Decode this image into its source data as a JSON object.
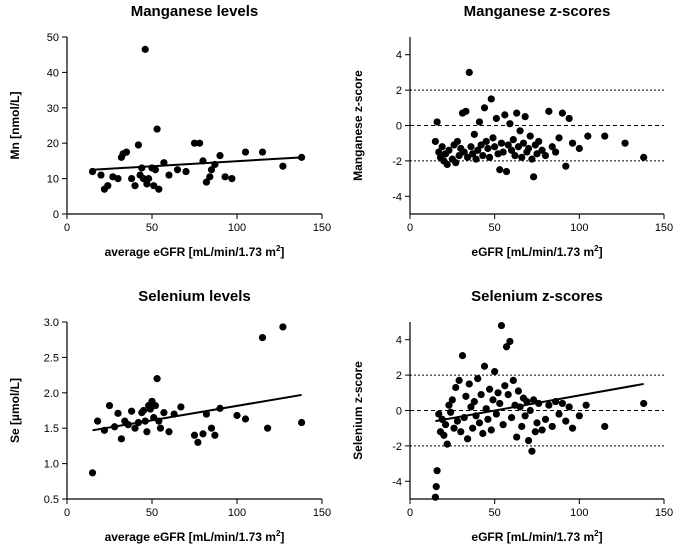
{
  "chart_data": [
    {
      "type": "scatter",
      "title": "Manganese levels",
      "xlabel": "average eGFR [mL/min/1.73 m",
      "xlabel_sup": "2",
      "xlabel_end": "]",
      "ylabel": "Mn [nmol/L]",
      "xlim": [
        0,
        150
      ],
      "ylim": [
        0,
        50
      ],
      "xticks": [
        0,
        50,
        100,
        150
      ],
      "yticks": [
        0,
        10,
        20,
        30,
        40,
        50
      ],
      "ref_lines": [],
      "trend": {
        "x": [
          15,
          138
        ],
        "y": [
          12.5,
          16.0
        ]
      },
      "points": [
        [
          15,
          12
        ],
        [
          20,
          11
        ],
        [
          22,
          7
        ],
        [
          24,
          8
        ],
        [
          27,
          10.5
        ],
        [
          30,
          10
        ],
        [
          32,
          16
        ],
        [
          33,
          17
        ],
        [
          35,
          17.5
        ],
        [
          38,
          10
        ],
        [
          40,
          8
        ],
        [
          42,
          19.5
        ],
        [
          43,
          11
        ],
        [
          44,
          13
        ],
        [
          45,
          10
        ],
        [
          46,
          46.5
        ],
        [
          47,
          8.5
        ],
        [
          48,
          10
        ],
        [
          50,
          13
        ],
        [
          51,
          8
        ],
        [
          52,
          12.5
        ],
        [
          53,
          24
        ],
        [
          54,
          7
        ],
        [
          57,
          14.5
        ],
        [
          60,
          11
        ],
        [
          65,
          12.5
        ],
        [
          70,
          12
        ],
        [
          75,
          20
        ],
        [
          78,
          20
        ],
        [
          80,
          15
        ],
        [
          82,
          9
        ],
        [
          84,
          10.5
        ],
        [
          85,
          12.5
        ],
        [
          87,
          14
        ],
        [
          90,
          16.5
        ],
        [
          93,
          10.5
        ],
        [
          97,
          10
        ],
        [
          105,
          17.5
        ],
        [
          115,
          17.5
        ],
        [
          127,
          13.5
        ],
        [
          138,
          16
        ]
      ]
    },
    {
      "type": "scatter",
      "title": "Manganese z-scores",
      "xlabel": "eGFR [mL/min/1.73 m",
      "xlabel_sup": "2",
      "xlabel_end": "]",
      "ylabel": "Manganese z-score",
      "xlim": [
        0,
        150
      ],
      "ylim": [
        -5,
        5
      ],
      "xticks": [
        0,
        50,
        100,
        150
      ],
      "yticks": [
        -4,
        -2,
        0,
        2,
        4
      ],
      "ref_lines": [
        2,
        0,
        -2
      ],
      "trend": null,
      "points": [
        [
          15,
          -0.9
        ],
        [
          16,
          0.2
        ],
        [
          17,
          -1.5
        ],
        [
          18,
          -1.8
        ],
        [
          19,
          -1.2
        ],
        [
          20,
          -2.0
        ],
        [
          21,
          -1.6
        ],
        [
          22,
          -2.2
        ],
        [
          23,
          -1.4
        ],
        [
          25,
          -1.9
        ],
        [
          26,
          -1.1
        ],
        [
          27,
          -2.1
        ],
        [
          28,
          -0.9
        ],
        [
          29,
          -1.7
        ],
        [
          30,
          -1.3
        ],
        [
          31,
          0.7
        ],
        [
          32,
          -1.5
        ],
        [
          33,
          0.8
        ],
        [
          34,
          -1.8
        ],
        [
          35,
          3.0
        ],
        [
          36,
          -1.2
        ],
        [
          37,
          -1.6
        ],
        [
          38,
          -0.5
        ],
        [
          39,
          -1.9
        ],
        [
          40,
          -1.4
        ],
        [
          41,
          0.2
        ],
        [
          42,
          -1.1
        ],
        [
          43,
          -1.7
        ],
        [
          44,
          1.0
        ],
        [
          45,
          -0.9
        ],
        [
          46,
          -1.3
        ],
        [
          47,
          -1.8
        ],
        [
          48,
          1.5
        ],
        [
          49,
          -0.7
        ],
        [
          50,
          -1.2
        ],
        [
          51,
          0.4
        ],
        [
          52,
          -1.6
        ],
        [
          53,
          -2.5
        ],
        [
          54,
          -1.0
        ],
        [
          55,
          -1.5
        ],
        [
          56,
          0.6
        ],
        [
          57,
          -2.6
        ],
        [
          58,
          -1.1
        ],
        [
          59,
          0.1
        ],
        [
          60,
          -1.4
        ],
        [
          61,
          -0.8
        ],
        [
          62,
          -1.7
        ],
        [
          63,
          0.7
        ],
        [
          64,
          -1.2
        ],
        [
          65,
          -0.3
        ],
        [
          66,
          -1.8
        ],
        [
          67,
          -1.0
        ],
        [
          68,
          0.5
        ],
        [
          69,
          -1.5
        ],
        [
          70,
          -1.3
        ],
        [
          71,
          -0.6
        ],
        [
          72,
          -1.9
        ],
        [
          73,
          -2.9
        ],
        [
          74,
          -1.1
        ],
        [
          75,
          -1.6
        ],
        [
          76,
          -0.9
        ],
        [
          78,
          -1.4
        ],
        [
          80,
          -1.7
        ],
        [
          82,
          0.8
        ],
        [
          84,
          -1.2
        ],
        [
          86,
          -1.5
        ],
        [
          88,
          -0.7
        ],
        [
          90,
          0.7
        ],
        [
          92,
          -2.3
        ],
        [
          94,
          0.4
        ],
        [
          96,
          -1.0
        ],
        [
          100,
          -1.3
        ],
        [
          105,
          -0.6
        ],
        [
          115,
          -0.6
        ],
        [
          127,
          -1.0
        ],
        [
          138,
          -1.8
        ]
      ]
    },
    {
      "type": "scatter",
      "title": "Selenium levels",
      "xlabel": "average eGFR [mL/min/1.73 m",
      "xlabel_sup": "2",
      "xlabel_end": "]",
      "ylabel": "Se [µmol/L]",
      "xlim": [
        0,
        150
      ],
      "ylim": [
        0.5,
        3.0
      ],
      "xticks": [
        0,
        50,
        100,
        150
      ],
      "yticks": [
        0.5,
        1.0,
        1.5,
        2.0,
        2.5,
        3.0
      ],
      "ref_lines": [],
      "trend": {
        "x": [
          15,
          138
        ],
        "y": [
          1.47,
          1.97
        ]
      },
      "points": [
        [
          15,
          0.87
        ],
        [
          18,
          1.6
        ],
        [
          22,
          1.47
        ],
        [
          25,
          1.82
        ],
        [
          28,
          1.52
        ],
        [
          30,
          1.71
        ],
        [
          32,
          1.35
        ],
        [
          34,
          1.6
        ],
        [
          36,
          1.55
        ],
        [
          38,
          1.74
        ],
        [
          40,
          1.5
        ],
        [
          42,
          1.58
        ],
        [
          44,
          1.72
        ],
        [
          45,
          1.75
        ],
        [
          46,
          1.6
        ],
        [
          47,
          1.45
        ],
        [
          48,
          1.82
        ],
        [
          49,
          1.77
        ],
        [
          50,
          1.88
        ],
        [
          51,
          1.65
        ],
        [
          52,
          1.82
        ],
        [
          53,
          2.2
        ],
        [
          54,
          1.6
        ],
        [
          55,
          1.5
        ],
        [
          57,
          1.72
        ],
        [
          60,
          1.45
        ],
        [
          63,
          1.7
        ],
        [
          67,
          1.8
        ],
        [
          75,
          1.4
        ],
        [
          77,
          1.3
        ],
        [
          80,
          1.42
        ],
        [
          82,
          1.7
        ],
        [
          85,
          1.5
        ],
        [
          87,
          1.4
        ],
        [
          90,
          1.78
        ],
        [
          100,
          1.68
        ],
        [
          105,
          1.63
        ],
        [
          115,
          2.78
        ],
        [
          118,
          1.5
        ],
        [
          127,
          2.93
        ],
        [
          138,
          1.58
        ]
      ]
    },
    {
      "type": "scatter",
      "title": "Selenium z-scores",
      "xlabel": "eGFR [mL/min/1.73 m",
      "xlabel_sup": "2",
      "xlabel_end": "]",
      "ylabel": "Selenium z-score",
      "xlim": [
        0,
        150
      ],
      "ylim": [
        -5,
        5
      ],
      "xticks": [
        0,
        50,
        100,
        150
      ],
      "yticks": [
        -4,
        -2,
        0,
        2,
        4
      ],
      "ref_lines": [
        2,
        0,
        -2
      ],
      "trend": {
        "x": [
          15,
          138
        ],
        "y": [
          -0.6,
          1.5
        ]
      },
      "points": [
        [
          15,
          -4.9
        ],
        [
          15.5,
          -4.3
        ],
        [
          16,
          -3.4
        ],
        [
          17,
          -0.2
        ],
        [
          18,
          -1.2
        ],
        [
          19,
          -0.5
        ],
        [
          20,
          -1.4
        ],
        [
          21,
          -0.8
        ],
        [
          22,
          -1.9
        ],
        [
          23,
          0.3
        ],
        [
          24,
          -0.1
        ],
        [
          25,
          0.6
        ],
        [
          26,
          -1.0
        ],
        [
          27,
          1.3
        ],
        [
          28,
          -0.6
        ],
        [
          29,
          1.7
        ],
        [
          30,
          -1.2
        ],
        [
          31,
          3.1
        ],
        [
          32,
          -0.4
        ],
        [
          33,
          0.8
        ],
        [
          34,
          -1.6
        ],
        [
          35,
          1.5
        ],
        [
          36,
          0.2
        ],
        [
          37,
          -1.0
        ],
        [
          38,
          0.5
        ],
        [
          39,
          -0.3
        ],
        [
          40,
          1.8
        ],
        [
          41,
          -0.7
        ],
        [
          42,
          0.9
        ],
        [
          43,
          -1.3
        ],
        [
          44,
          2.5
        ],
        [
          45,
          0.1
        ],
        [
          46,
          -0.5
        ],
        [
          47,
          1.2
        ],
        [
          48,
          -1.1
        ],
        [
          49,
          0.6
        ],
        [
          50,
          2.2
        ],
        [
          51,
          -0.2
        ],
        [
          52,
          1.0
        ],
        [
          53,
          0.4
        ],
        [
          54,
          4.8
        ],
        [
          55,
          -0.8
        ],
        [
          56,
          1.4
        ],
        [
          57,
          3.6
        ],
        [
          58,
          0.9
        ],
        [
          59,
          3.9
        ],
        [
          60,
          -0.4
        ],
        [
          61,
          1.7
        ],
        [
          62,
          0.3
        ],
        [
          63,
          -1.5
        ],
        [
          64,
          1.1
        ],
        [
          65,
          0.2
        ],
        [
          66,
          -0.9
        ],
        [
          67,
          0.7
        ],
        [
          68,
          -0.3
        ],
        [
          69,
          0.5
        ],
        [
          70,
          -1.7
        ],
        [
          71,
          0.0
        ],
        [
          72,
          -2.3
        ],
        [
          73,
          0.6
        ],
        [
          74,
          -1.2
        ],
        [
          75,
          -0.7
        ],
        [
          76,
          0.4
        ],
        [
          78,
          -1.1
        ],
        [
          80,
          -0.5
        ],
        [
          82,
          0.3
        ],
        [
          84,
          -0.9
        ],
        [
          86,
          0.5
        ],
        [
          88,
          -0.2
        ],
        [
          90,
          0.4
        ],
        [
          92,
          -0.6
        ],
        [
          94,
          0.2
        ],
        [
          96,
          -1.0
        ],
        [
          100,
          -0.3
        ],
        [
          104,
          0.3
        ],
        [
          115,
          -0.9
        ],
        [
          138,
          0.4
        ]
      ]
    }
  ]
}
